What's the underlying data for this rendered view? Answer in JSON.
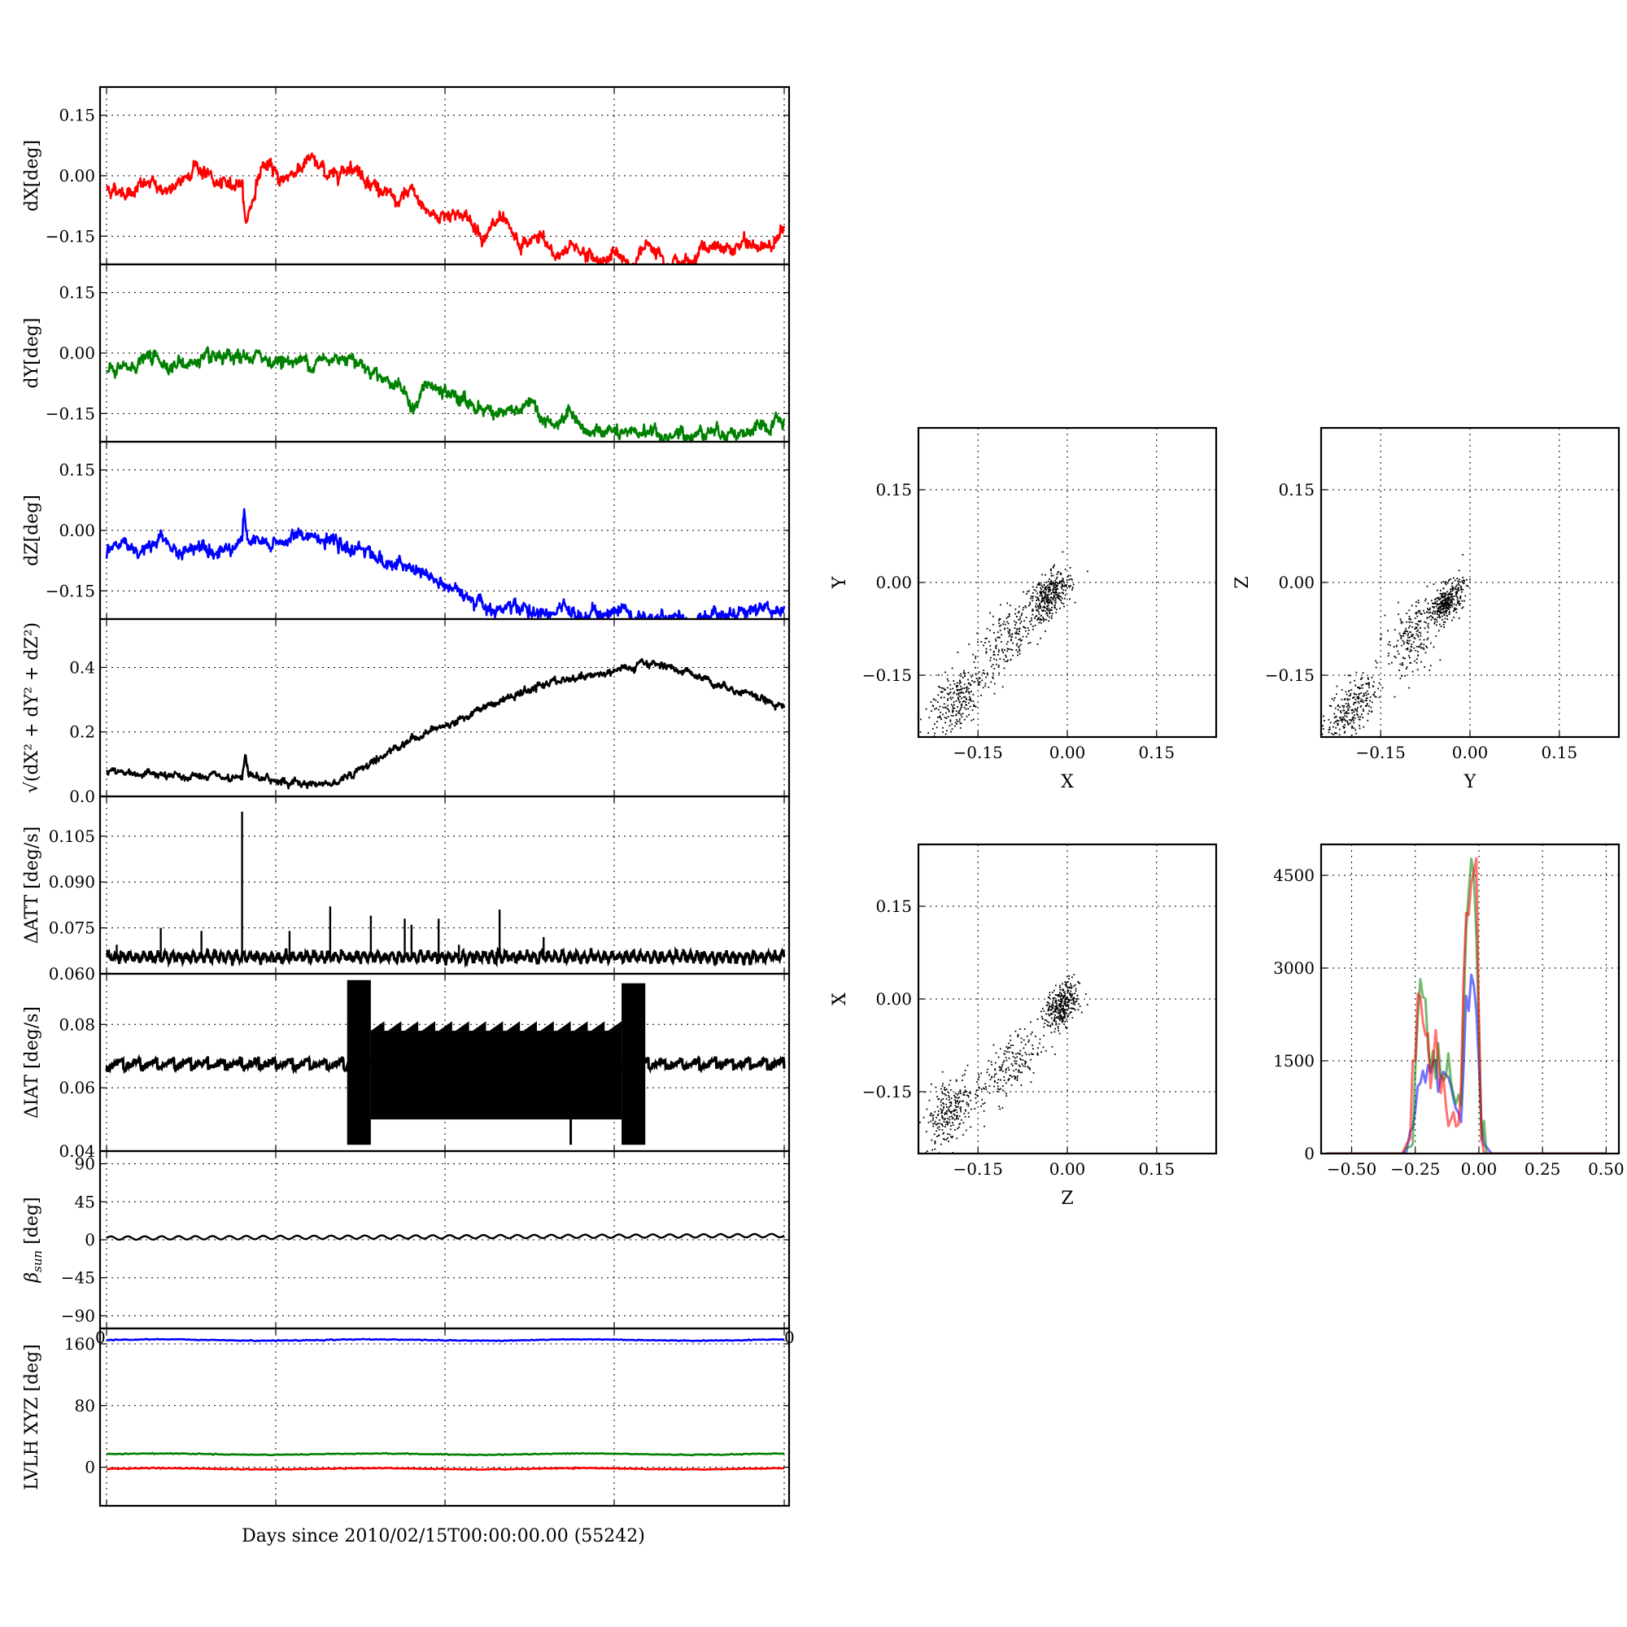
{
  "figure": {
    "xlabel": "Days since 2010/02/15T00:00:00.00 (55242)"
  },
  "chart_data": [
    {
      "type": "line",
      "panel": "dX",
      "ylabel": "dX[deg]",
      "yticks": [
        0.15,
        0.0,
        -0.15
      ],
      "ytick_labels": [
        "0.15",
        "0.00",
        "−0.15"
      ],
      "ylim": [
        -0.22,
        0.22
      ],
      "xlim": [
        0,
        1
      ],
      "series": [
        {
          "color": "#ff0000",
          "x": [
            0.0,
            0.03,
            0.06,
            0.1,
            0.13,
            0.17,
            0.2,
            0.205,
            0.23,
            0.26,
            0.3,
            0.33,
            0.36,
            0.4,
            0.43,
            0.45,
            0.48,
            0.52,
            0.56,
            0.58,
            0.61,
            0.64,
            0.66,
            0.69,
            0.72,
            0.75,
            0.78,
            0.8,
            0.83,
            0.86,
            0.88,
            0.91,
            0.94,
            0.97,
            1.0
          ],
          "y": [
            -0.03,
            -0.04,
            -0.02,
            -0.04,
            0.03,
            -0.03,
            -0.01,
            -0.12,
            0.03,
            -0.01,
            0.04,
            0.0,
            0.03,
            -0.03,
            -0.07,
            -0.04,
            -0.1,
            -0.09,
            -0.15,
            -0.11,
            -0.18,
            -0.15,
            -0.2,
            -0.17,
            -0.21,
            -0.2,
            -0.22,
            -0.16,
            -0.21,
            -0.22,
            -0.17,
            -0.19,
            -0.17,
            -0.18,
            -0.13
          ]
        }
      ]
    },
    {
      "type": "line",
      "panel": "dY",
      "ylabel": "dY[deg]",
      "yticks": [
        0.15,
        0.0,
        -0.15
      ],
      "ytick_labels": [
        "0.15",
        "0.00",
        "−0.15"
      ],
      "ylim": [
        -0.22,
        0.22
      ],
      "xlim": [
        0,
        1
      ],
      "series": [
        {
          "color": "#008000",
          "x": [
            0.0,
            0.03,
            0.06,
            0.1,
            0.14,
            0.18,
            0.22,
            0.26,
            0.3,
            0.33,
            0.36,
            0.37,
            0.4,
            0.43,
            0.455,
            0.47,
            0.5,
            0.53,
            0.56,
            0.6,
            0.63,
            0.66,
            0.68,
            0.7,
            0.74,
            0.76,
            0.8,
            0.82,
            0.86,
            0.9,
            0.94,
            0.97,
            1.0
          ],
          "y": [
            -0.05,
            -0.04,
            -0.01,
            -0.03,
            -0.02,
            -0.02,
            -0.01,
            -0.02,
            -0.02,
            -0.02,
            0.0,
            -0.02,
            -0.05,
            -0.08,
            -0.14,
            -0.08,
            -0.1,
            -0.12,
            -0.14,
            -0.15,
            -0.13,
            -0.19,
            -0.15,
            -0.2,
            -0.19,
            -0.21,
            -0.19,
            -0.21,
            -0.2,
            -0.19,
            -0.2,
            -0.19,
            -0.17
          ]
        }
      ]
    },
    {
      "type": "line",
      "panel": "dZ",
      "ylabel": "dZ[deg]",
      "yticks": [
        0.15,
        0.0,
        -0.15
      ],
      "ytick_labels": [
        "0.15",
        "0.00",
        "−0.15"
      ],
      "ylim": [
        -0.22,
        0.22
      ],
      "xlim": [
        0,
        1
      ],
      "series": [
        {
          "color": "#0000ff",
          "x": [
            0.0,
            0.02,
            0.05,
            0.08,
            0.11,
            0.14,
            0.17,
            0.2,
            0.203,
            0.206,
            0.24,
            0.27,
            0.3,
            0.33,
            0.35,
            0.38,
            0.41,
            0.43,
            0.46,
            0.49,
            0.52,
            0.55,
            0.58,
            0.61,
            0.64,
            0.67,
            0.7,
            0.72,
            0.74,
            0.76,
            0.78,
            0.82,
            0.86,
            0.9,
            0.94,
            0.97,
            1.0
          ],
          "y": [
            -0.06,
            -0.03,
            -0.05,
            -0.02,
            -0.06,
            -0.03,
            -0.05,
            -0.02,
            0.05,
            -0.02,
            -0.04,
            -0.02,
            -0.01,
            -0.03,
            -0.05,
            -0.04,
            -0.08,
            -0.09,
            -0.1,
            -0.13,
            -0.16,
            -0.17,
            -0.2,
            -0.19,
            -0.21,
            -0.2,
            -0.22,
            -0.2,
            -0.21,
            -0.19,
            -0.22,
            -0.21,
            -0.22,
            -0.21,
            -0.2,
            -0.19,
            -0.2
          ]
        }
      ]
    },
    {
      "type": "line",
      "panel": "norm",
      "ylabel": "√(dX² + dY² + dZ²)",
      "yticks": [
        0.0,
        0.2,
        0.4
      ],
      "ytick_labels": [
        "0.0",
        "0.2",
        "0.4"
      ],
      "ylim": [
        0,
        0.55
      ],
      "xlim": [
        0,
        1
      ],
      "series": [
        {
          "color": "#000000",
          "x": [
            0.0,
            0.05,
            0.1,
            0.15,
            0.2,
            0.205,
            0.21,
            0.25,
            0.3,
            0.33,
            0.35,
            0.38,
            0.41,
            0.45,
            0.5,
            0.55,
            0.6,
            0.65,
            0.7,
            0.75,
            0.78,
            0.8,
            0.82,
            0.85,
            0.88,
            0.9,
            0.93,
            0.96,
            1.0
          ],
          "y": [
            0.08,
            0.07,
            0.06,
            0.06,
            0.05,
            0.13,
            0.06,
            0.05,
            0.04,
            0.04,
            0.06,
            0.09,
            0.13,
            0.18,
            0.22,
            0.27,
            0.31,
            0.35,
            0.37,
            0.39,
            0.4,
            0.41,
            0.41,
            0.39,
            0.37,
            0.35,
            0.33,
            0.31,
            0.28
          ]
        }
      ]
    },
    {
      "type": "line",
      "panel": "dATT",
      "ylabel": "ΔATT [deg/s]",
      "yticks": [
        0.06,
        0.075,
        0.09,
        0.105
      ],
      "ytick_labels": [
        "0.060",
        "0.075",
        "0.090",
        "0.105"
      ],
      "ylim": [
        0.06,
        0.118
      ],
      "xlim": [
        0,
        1
      ],
      "baseline": 0.0655,
      "spikes": {
        "x": [
          0.015,
          0.08,
          0.14,
          0.2,
          0.27,
          0.33,
          0.39,
          0.44,
          0.45,
          0.49,
          0.52,
          0.58,
          0.645
        ],
        "y": [
          0.0695,
          0.075,
          0.074,
          0.113,
          0.074,
          0.082,
          0.079,
          0.078,
          0.076,
          0.078,
          0.0695,
          0.081,
          0.072
        ]
      },
      "series": [
        {
          "color": "#000000"
        }
      ]
    },
    {
      "type": "line",
      "panel": "dIAT",
      "ylabel": "ΔIAT [deg/s]",
      "yticks": [
        0.04,
        0.06,
        0.08
      ],
      "ytick_labels": [
        "0.04",
        "0.06",
        "0.08"
      ],
      "ylim": [
        0.04,
        0.096
      ],
      "xlim": [
        0,
        1
      ],
      "baseline": 0.066,
      "dense_bands": [
        {
          "x0": 0.355,
          "x1": 0.39,
          "ymin": 0.042,
          "ymax": 0.094
        },
        {
          "x0": 0.39,
          "x1": 0.76,
          "ymin": 0.05,
          "ymax": 0.078
        },
        {
          "x0": 0.76,
          "x1": 0.795,
          "ymin": 0.042,
          "ymax": 0.093
        }
      ],
      "series": [
        {
          "color": "#000000"
        }
      ]
    },
    {
      "type": "line",
      "panel": "beta_sun",
      "ylabel": "β",
      "ylabel_sub": "sun",
      "ylabel_unit": " [deg]",
      "yticks": [
        90,
        45,
        0,
        -45,
        -90
      ],
      "ytick_labels": [
        "90",
        "45",
        "0",
        "−45",
        "−90"
      ],
      "ylim": [
        -105,
        105
      ],
      "xlim": [
        0,
        1
      ],
      "bottom_tick_labels": [
        "0",
        "0"
      ],
      "series": [
        {
          "color": "#000000",
          "mean": 2,
          "amplitude": 2,
          "cycles": 40
        }
      ]
    },
    {
      "type": "line",
      "panel": "lvlh",
      "ylabel": "LVLH XYZ [deg]",
      "yticks": [
        160,
        80,
        0
      ],
      "ytick_labels": [
        "160",
        "80",
        "0"
      ],
      "ylim": [
        -50,
        180
      ],
      "xlim": [
        0,
        1
      ],
      "series": [
        {
          "color": "#0000ff",
          "level": 165
        },
        {
          "color": "#008000",
          "level": 17
        },
        {
          "color": "#ff0000",
          "level": -2
        }
      ]
    },
    {
      "type": "scatter",
      "panel": "XY",
      "xlabel": "X",
      "ylabel": "Y",
      "xlim": [
        -0.25,
        0.25
      ],
      "ylim": [
        -0.25,
        0.25
      ],
      "ticks": [
        -0.15,
        0.0,
        0.15
      ],
      "tick_labels": [
        "−0.15",
        "0.00",
        "0.15"
      ],
      "clusters": [
        {
          "cx": -0.03,
          "cy": -0.02,
          "sx": 0.025,
          "sy": 0.025,
          "n": 350
        },
        {
          "cx": -0.1,
          "cy": -0.09,
          "sx": 0.04,
          "sy": 0.035,
          "n": 200
        },
        {
          "cx": -0.19,
          "cy": -0.19,
          "sx": 0.035,
          "sy": 0.035,
          "n": 250
        }
      ]
    },
    {
      "type": "scatter",
      "panel": "YZ",
      "xlabel": "Y",
      "ylabel": "Z",
      "xlim": [
        -0.25,
        0.25
      ],
      "ylim": [
        -0.25,
        0.25
      ],
      "ticks": [
        -0.15,
        0.0,
        0.15
      ],
      "tick_labels": [
        "−0.15",
        "0.00",
        "0.15"
      ],
      "clusters": [
        {
          "cx": -0.04,
          "cy": -0.03,
          "sx": 0.02,
          "sy": 0.02,
          "n": 350
        },
        {
          "cx": -0.1,
          "cy": -0.09,
          "sx": 0.03,
          "sy": 0.04,
          "n": 200
        },
        {
          "cx": -0.2,
          "cy": -0.2,
          "sx": 0.03,
          "sy": 0.03,
          "n": 250
        }
      ]
    },
    {
      "type": "scatter",
      "panel": "ZX",
      "xlabel": "Z",
      "ylabel": "X",
      "xlim": [
        -0.25,
        0.25
      ],
      "ylim": [
        -0.25,
        0.25
      ],
      "ticks": [
        -0.15,
        0.0,
        0.15
      ],
      "tick_labels": [
        "−0.15",
        "0.00",
        "0.15"
      ],
      "clusters": [
        {
          "cx": -0.01,
          "cy": -0.01,
          "sx": 0.02,
          "sy": 0.025,
          "n": 350
        },
        {
          "cx": -0.1,
          "cy": -0.11,
          "sx": 0.04,
          "sy": 0.035,
          "n": 200
        },
        {
          "cx": -0.2,
          "cy": -0.18,
          "sx": 0.03,
          "sy": 0.04,
          "n": 250
        }
      ]
    },
    {
      "type": "line",
      "panel": "histogram",
      "xlim": [
        -0.62,
        0.55
      ],
      "ylim": [
        0,
        5000
      ],
      "xticks": [
        -0.5,
        -0.25,
        0.0,
        0.25,
        0.5
      ],
      "xtick_labels": [
        "−0.50",
        "−0.25",
        "0.00",
        "0.25",
        "0.50"
      ],
      "yticks": [
        0,
        1500,
        3000,
        4500
      ],
      "ytick_labels": [
        "0",
        "1500",
        "3000",
        "4500"
      ],
      "x": [
        -0.6,
        -0.3,
        -0.27,
        -0.25,
        -0.23,
        -0.21,
        -0.19,
        -0.17,
        -0.15,
        -0.13,
        -0.11,
        -0.09,
        -0.07,
        -0.05,
        -0.03,
        -0.01,
        0.01,
        0.03,
        0.05,
        0.5
      ],
      "series": [
        {
          "color": "#0000ff",
          "values": [
            0,
            0,
            50,
            800,
            1200,
            1400,
            1100,
            1500,
            1000,
            1300,
            900,
            700,
            600,
            2500,
            2800,
            2200,
            500,
            100,
            0,
            0
          ]
        },
        {
          "color": "#008000",
          "values": [
            0,
            0,
            200,
            1500,
            2800,
            2300,
            1600,
            1400,
            1300,
            1600,
            1200,
            700,
            1000,
            3500,
            4700,
            3800,
            0,
            0,
            0,
            0
          ]
        },
        {
          "color": "#ff0000",
          "values": [
            0,
            0,
            300,
            1800,
            2600,
            2000,
            1200,
            1900,
            1000,
            900,
            600,
            300,
            1100,
            3800,
            4300,
            4900,
            100,
            0,
            0,
            0
          ]
        }
      ]
    }
  ]
}
